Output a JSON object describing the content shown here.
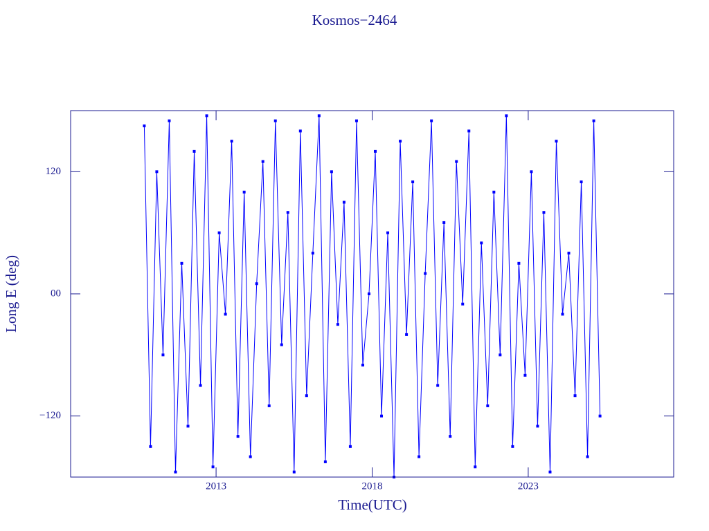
{
  "chart_data": {
    "type": "line",
    "title": "Kosmos−2464",
    "x_label": "Time(UTC)",
    "y_label": "Long E (deg)",
    "xlim": [
      2008.34,
      2027.66
    ],
    "xticks": [
      2013,
      2018,
      2023
    ],
    "ylim": [
      -180,
      180
    ],
    "yticks": [
      120,
      {
        "value": 0,
        "label": "00"
      },
      {
        "value": -120,
        "label": "−120"
      }
    ],
    "series": [
      {
        "color": "#0000ff",
        "x": [
          2010.7,
          2010.9,
          2011.1,
          2011.3,
          2011.5,
          2011.7,
          2011.9,
          2012.1,
          2012.3,
          2012.5,
          2012.7,
          2012.9,
          2013.1,
          2013.3,
          2013.5,
          2013.7,
          2013.9,
          2014.1,
          2014.3,
          2014.5,
          2014.7,
          2014.9,
          2015.1,
          2015.3,
          2015.5,
          2015.7,
          2015.9,
          2016.1,
          2016.3,
          2016.5,
          2016.7,
          2016.9,
          2017.1,
          2017.3,
          2017.5,
          2017.7,
          2017.9,
          2018.1,
          2018.3,
          2018.5,
          2018.7,
          2018.9,
          2019.1,
          2019.3,
          2019.5,
          2019.7,
          2019.9,
          2020.1,
          2020.3,
          2020.5,
          2020.7,
          2020.9,
          2021.1,
          2021.3,
          2021.5,
          2021.7,
          2021.9,
          2022.1,
          2022.3,
          2022.5,
          2022.7,
          2022.9,
          2023.1,
          2023.3,
          2023.5,
          2023.7,
          2023.9,
          2024.1,
          2024.3,
          2024.5,
          2024.7,
          2024.9,
          2025.1,
          2025.3
        ],
        "values": [
          165,
          -150,
          120,
          -60,
          170,
          -175,
          30,
          -130,
          140,
          -90,
          175,
          -170,
          60,
          -20,
          150,
          -140,
          100,
          -160,
          10,
          130,
          -110,
          170,
          -50,
          80,
          -175,
          160,
          -100,
          40,
          175,
          -165,
          120,
          -30,
          90,
          -150,
          170,
          -70,
          0,
          140,
          -120,
          60,
          -180,
          150,
          -40,
          110,
          -160,
          20,
          170,
          -90,
          70,
          -140,
          130,
          -10,
          160,
          -170,
          50,
          -110,
          100,
          -60,
          175,
          -150,
          30,
          -80,
          120,
          -130,
          80,
          -175,
          150,
          -20,
          40,
          -100,
          110,
          -160,
          170,
          -120
        ]
      }
    ]
  }
}
